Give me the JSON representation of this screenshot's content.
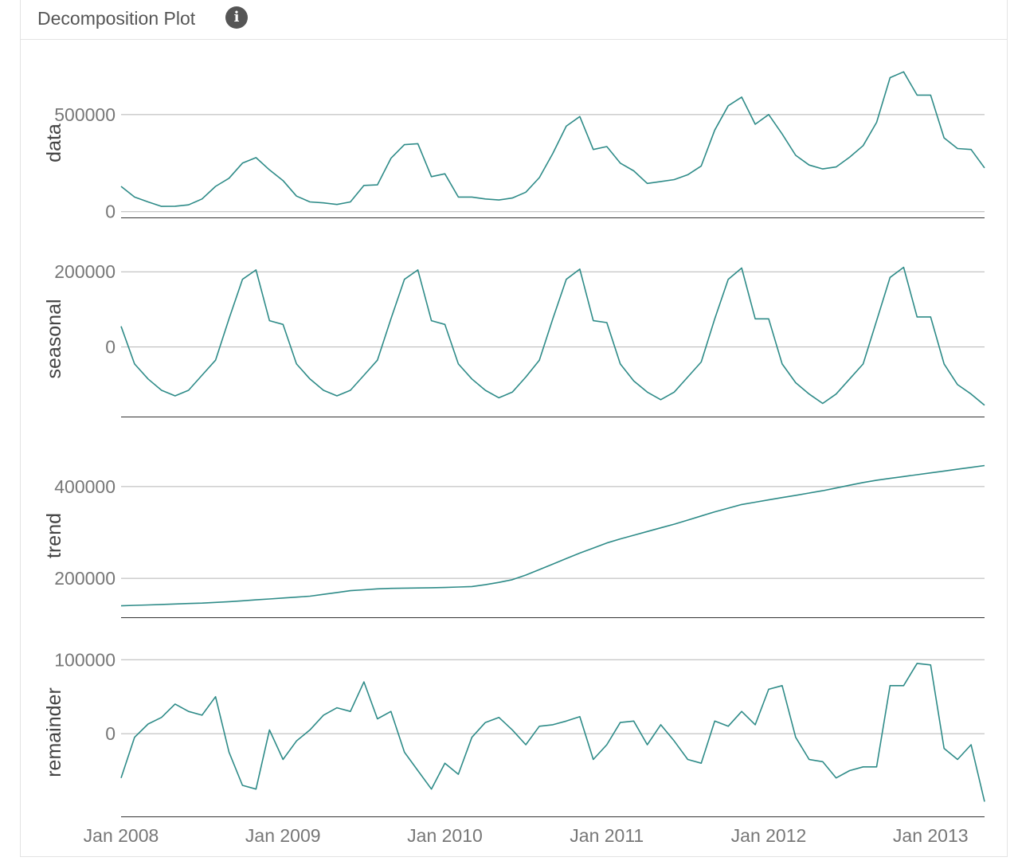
{
  "panel": {
    "title": "Decomposition Plot",
    "info_icon": "info-circle-icon"
  },
  "colors": {
    "series_line": "#2e8b88",
    "grid": "#b5b5b5",
    "axis_line": "#333333",
    "tick_text": "#777777",
    "panel_label": "#444444"
  },
  "chart_data": {
    "type": "line",
    "x_start": "Jan 2008",
    "frequency": "monthly",
    "x_tick_labels": [
      "Jan 2008",
      "Jan 2009",
      "Jan 2010",
      "Jan 2011",
      "Jan 2012",
      "Jan 2013"
    ],
    "panels": [
      {
        "name": "data",
        "yticks": [
          0,
          500000
        ],
        "ylim": [
          -30000,
          770000
        ],
        "values": [
          130000,
          75000,
          50000,
          27000,
          28000,
          35000,
          65000,
          130000,
          172000,
          250000,
          278000,
          215000,
          160000,
          80000,
          50000,
          45000,
          37000,
          50000,
          135000,
          138000,
          275000,
          345000,
          350000,
          180000,
          195000,
          75000,
          75000,
          65000,
          60000,
          70000,
          100000,
          175000,
          300000,
          440000,
          490000,
          320000,
          335000,
          250000,
          210000,
          145000,
          155000,
          165000,
          190000,
          235000,
          420000,
          545000,
          590000,
          450000,
          500000,
          400000,
          290000,
          240000,
          220000,
          230000,
          280000,
          340000,
          460000,
          690000,
          720000,
          600000,
          600000,
          380000,
          325000,
          320000,
          225000
        ]
      },
      {
        "name": "seasonal",
        "yticks": [
          0,
          200000
        ],
        "ylim": [
          -185000,
          245000
        ],
        "values": [
          55000,
          -45000,
          -85000,
          -115000,
          -130000,
          -115000,
          -75000,
          -35000,
          75000,
          180000,
          205000,
          70000,
          60000,
          -45000,
          -85000,
          -115000,
          -130000,
          -115000,
          -75000,
          -35000,
          75000,
          180000,
          205000,
          70000,
          60000,
          -45000,
          -85000,
          -115000,
          -135000,
          -120000,
          -80000,
          -35000,
          75000,
          180000,
          207000,
          70000,
          65000,
          -45000,
          -90000,
          -120000,
          -140000,
          -120000,
          -80000,
          -40000,
          75000,
          180000,
          210000,
          75000,
          75000,
          -45000,
          -95000,
          -125000,
          -150000,
          -125000,
          -85000,
          -45000,
          70000,
          185000,
          212000,
          80000,
          80000,
          -45000,
          -100000,
          -125000,
          -155000
        ]
      },
      {
        "name": "trend",
        "yticks": [
          200000,
          400000
        ],
        "ylim": [
          115000,
          485000
        ],
        "values": [
          140000,
          141000,
          142000,
          143000,
          144000,
          145000,
          146000,
          147500,
          149000,
          151000,
          153000,
          155000,
          157000,
          159000,
          161000,
          165000,
          169000,
          173000,
          175000,
          177000,
          178000,
          178500,
          179000,
          179500,
          180000,
          181000,
          182000,
          186000,
          191000,
          197000,
          207000,
          219000,
          231000,
          243000,
          255000,
          266000,
          277000,
          286000,
          294000,
          302000,
          310000,
          318000,
          327000,
          336000,
          345000,
          353000,
          361000,
          366000,
          371000,
          376000,
          381000,
          386000,
          391000,
          397000,
          403000,
          409000,
          414000,
          418000,
          422000,
          426000,
          430000,
          434000,
          438000,
          442000,
          446000
        ]
      },
      {
        "name": "remainder",
        "yticks": [
          0,
          100000
        ],
        "ylim": [
          -112000,
          124000
        ],
        "values": [
          -60000,
          -5000,
          13000,
          22000,
          40000,
          30000,
          25000,
          50000,
          -25000,
          -70000,
          -75000,
          5000,
          -35000,
          -10000,
          5000,
          25000,
          35000,
          30000,
          70000,
          20000,
          30000,
          -25000,
          -50000,
          -75000,
          -40000,
          -55000,
          -5000,
          15000,
          22000,
          5000,
          -15000,
          10000,
          12000,
          17000,
          23000,
          -35000,
          -15000,
          15000,
          17000,
          -15000,
          12000,
          -10000,
          -35000,
          -40000,
          17000,
          10000,
          30000,
          12000,
          60000,
          65000,
          -5000,
          -35000,
          -38000,
          -60000,
          -50000,
          -45000,
          -45000,
          65000,
          65000,
          95000,
          93000,
          -20000,
          -35000,
          -15000,
          -92000
        ]
      }
    ]
  }
}
